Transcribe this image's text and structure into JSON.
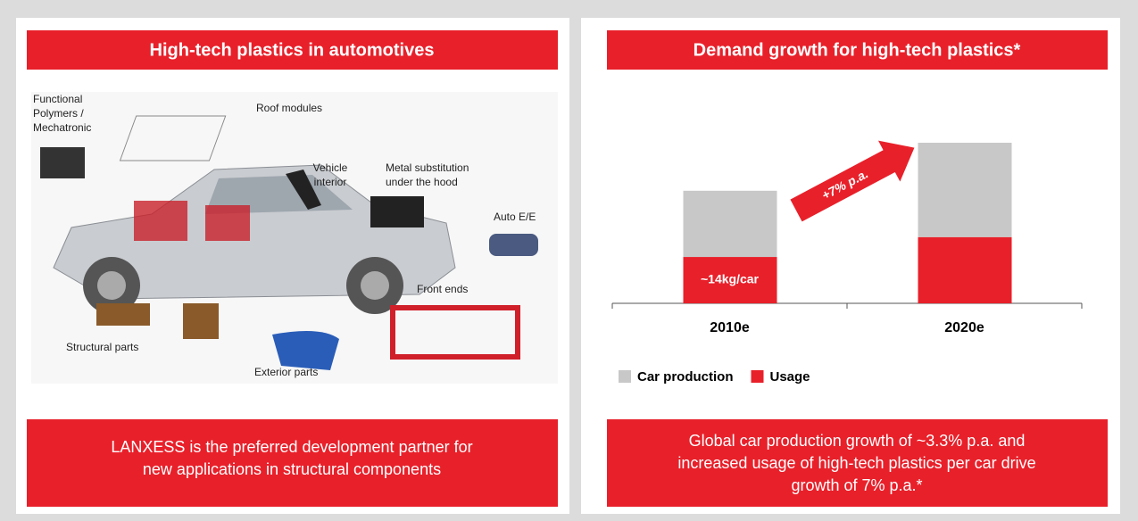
{
  "left_panel": {
    "title": "High-tech plastics in automotives",
    "labels": [
      [
        "Functional",
        "Polymers /",
        "Mechatronic"
      ],
      [
        "Roof modules"
      ],
      [
        "Vehicle",
        "interior"
      ],
      [
        "Metal substitution",
        "under the hood"
      ],
      [
        "Auto E/E"
      ],
      [
        "Front ends"
      ],
      [
        "Structural parts"
      ],
      [
        "Exterior parts"
      ]
    ],
    "footer": [
      "LANXESS is the preferred development partner for",
      "new applications in structural components"
    ]
  },
  "chart_data": {
    "type": "stacked_bar",
    "title": "Demand growth for high-tech plastics*",
    "categories": [
      "2010e",
      "2020e"
    ],
    "series": [
      {
        "name": "Car production",
        "color": "#c8c8c8",
        "values": [
          20,
          28.5
        ]
      },
      {
        "name": "Usage",
        "color": "#e8202a",
        "values": [
          14,
          20
        ],
        "value_labels": [
          "~14kg/car",
          null
        ]
      }
    ],
    "annotation": "+7% p.a.",
    "legend": "bottom-left"
  },
  "right_panel": {
    "footer": [
      "Global car production growth of ~3.3% p.a. and",
      "increased usage of high-tech plastics per car drive",
      "growth of 7% p.a.*"
    ]
  }
}
